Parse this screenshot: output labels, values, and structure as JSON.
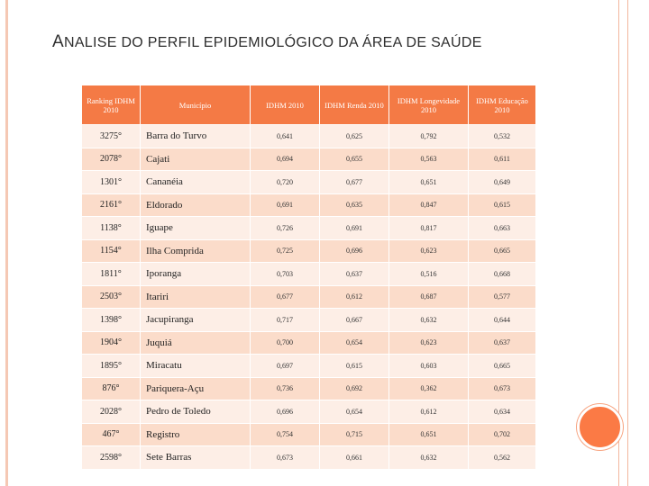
{
  "title_first_letter": "A",
  "title_rest": "NALISE DO PERFIL EPIDEMIOLÓGICO DA ÁREA DE SAÚDE",
  "headers": [
    "Ranking IDHM 2010",
    "Município",
    "IDHM 2010",
    "IDHM Renda 2010",
    "IDHM Longevidade 2010",
    "IDHM Educação 2010"
  ],
  "rows": [
    [
      "3275°",
      "Barra do Turvo",
      "0,641",
      "0,625",
      "0,792",
      "0,532"
    ],
    [
      "2078°",
      "Cajati",
      "0,694",
      "0,655",
      "0,563",
      "0,611"
    ],
    [
      "1301°",
      "Cananéia",
      "0,720",
      "0,677",
      "0,651",
      "0,649"
    ],
    [
      "2161°",
      "Eldorado",
      "0,691",
      "0,635",
      "0,847",
      "0,615"
    ],
    [
      "1138°",
      "Iguape",
      "0,726",
      "0,691",
      "0,817",
      "0,663"
    ],
    [
      "1154°",
      "Ilha Comprida",
      "0,725",
      "0,696",
      "0,623",
      "0,665"
    ],
    [
      "1811°",
      "Iporanga",
      "0,703",
      "0,637",
      "0,516",
      "0,668"
    ],
    [
      "2503°",
      "Itariri",
      "0,677",
      "0,612",
      "0,687",
      "0,577"
    ],
    [
      "1398°",
      "Jacupiranga",
      "0,717",
      "0,667",
      "0,632",
      "0,644"
    ],
    [
      "1904°",
      "Juquiá",
      "0,700",
      "0,654",
      "0,623",
      "0,637"
    ],
    [
      "1895°",
      "Miracatu",
      "0,697",
      "0,615",
      "0,603",
      "0,665"
    ],
    [
      "876°",
      "Pariquera-Açu",
      "0,736",
      "0,692",
      "0,362",
      "0,673"
    ],
    [
      "2028°",
      "Pedro de Toledo",
      "0,696",
      "0,654",
      "0,612",
      "0,634"
    ],
    [
      "467°",
      "Registro",
      "0,754",
      "0,715",
      "0,651",
      "0,702"
    ],
    [
      "2598°",
      "Sete Barras",
      "0,673",
      "0,661",
      "0,632",
      "0,562"
    ]
  ]
}
